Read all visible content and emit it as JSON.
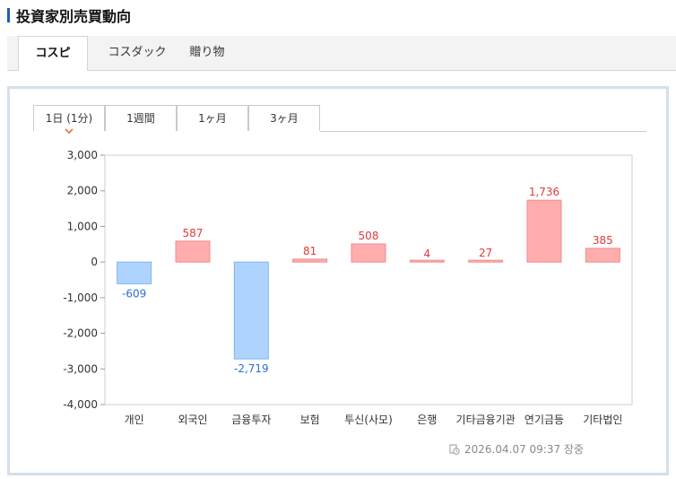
{
  "page_title": "投資家別売買動向",
  "market_tabs": [
    {
      "label": "コスピ",
      "active": true
    },
    {
      "label": "コスダック",
      "active": false
    },
    {
      "label": "贈り物",
      "active": false
    }
  ],
  "period_tabs": [
    {
      "label": "1日 (1分)",
      "active": true
    },
    {
      "label": "1週間",
      "active": false
    },
    {
      "label": "1ヶ月",
      "active": false
    },
    {
      "label": "3ヶ月",
      "active": false
    }
  ],
  "timestamp": "2026.04.07 09:37 장중",
  "colors": {
    "positive_fill": "#ffadad",
    "positive_text": "#e03a3a",
    "negative_fill": "#aed3ff",
    "negative_text": "#2c6fd6"
  },
  "chart_data": {
    "type": "bar",
    "categories": [
      "개인",
      "외국인",
      "금융투자",
      "보험",
      "투신(사모)",
      "은행",
      "기타금융기관",
      "연기금등",
      "기타법인"
    ],
    "values": [
      -609,
      587,
      -2719,
      81,
      508,
      4,
      27,
      1736,
      385
    ],
    "value_labels": [
      "-609",
      "587",
      "-2,719",
      "81",
      "508",
      "4",
      "27",
      "1,736",
      "385"
    ],
    "y_ticks": [
      "3,000",
      "2,000",
      "1,000",
      "0",
      "-1,000",
      "-2,000",
      "-3,000",
      "-4,000"
    ],
    "ylim": [
      -4000,
      3000
    ],
    "grid": false,
    "legend": "none"
  }
}
